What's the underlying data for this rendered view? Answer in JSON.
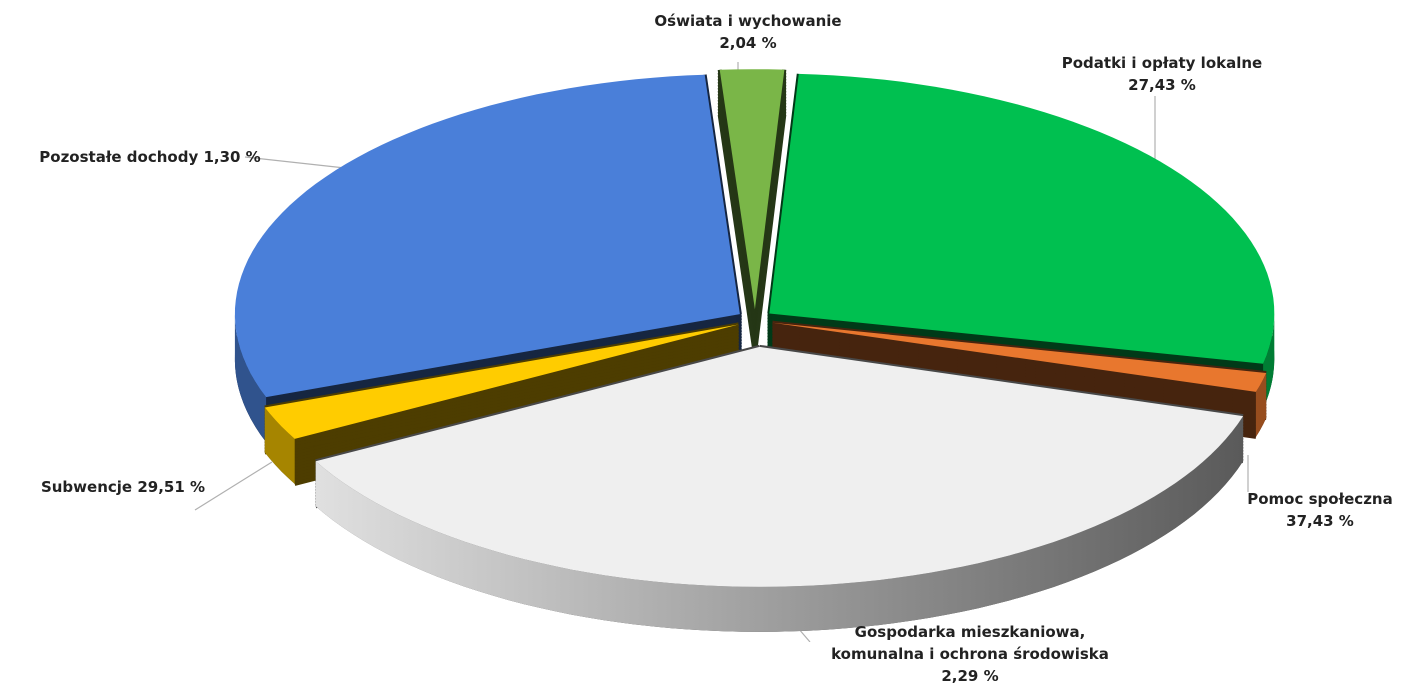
{
  "chart_data": {
    "type": "pie",
    "categories": [
      "Oświata i wychowanie",
      "Podatki i opłaty lokalne",
      "Pozostałe dochody",
      "Pomoc społeczna",
      "Gospodarka mieszkaniowa, komunalna i ochrona środowiska",
      "Subwencje"
    ],
    "values": [
      2.04,
      27.43,
      1.3,
      37.43,
      2.29,
      29.51
    ],
    "value_labels": [
      "2,04 %",
      "27,43 %",
      "1,30 %",
      "37,43 %",
      "2,29 %",
      "29,51 %"
    ],
    "colors": [
      "#7ab648",
      "#00c050",
      "#e8772e",
      "#efefef",
      "#ffcc00",
      "#4a7fd9"
    ]
  }
}
